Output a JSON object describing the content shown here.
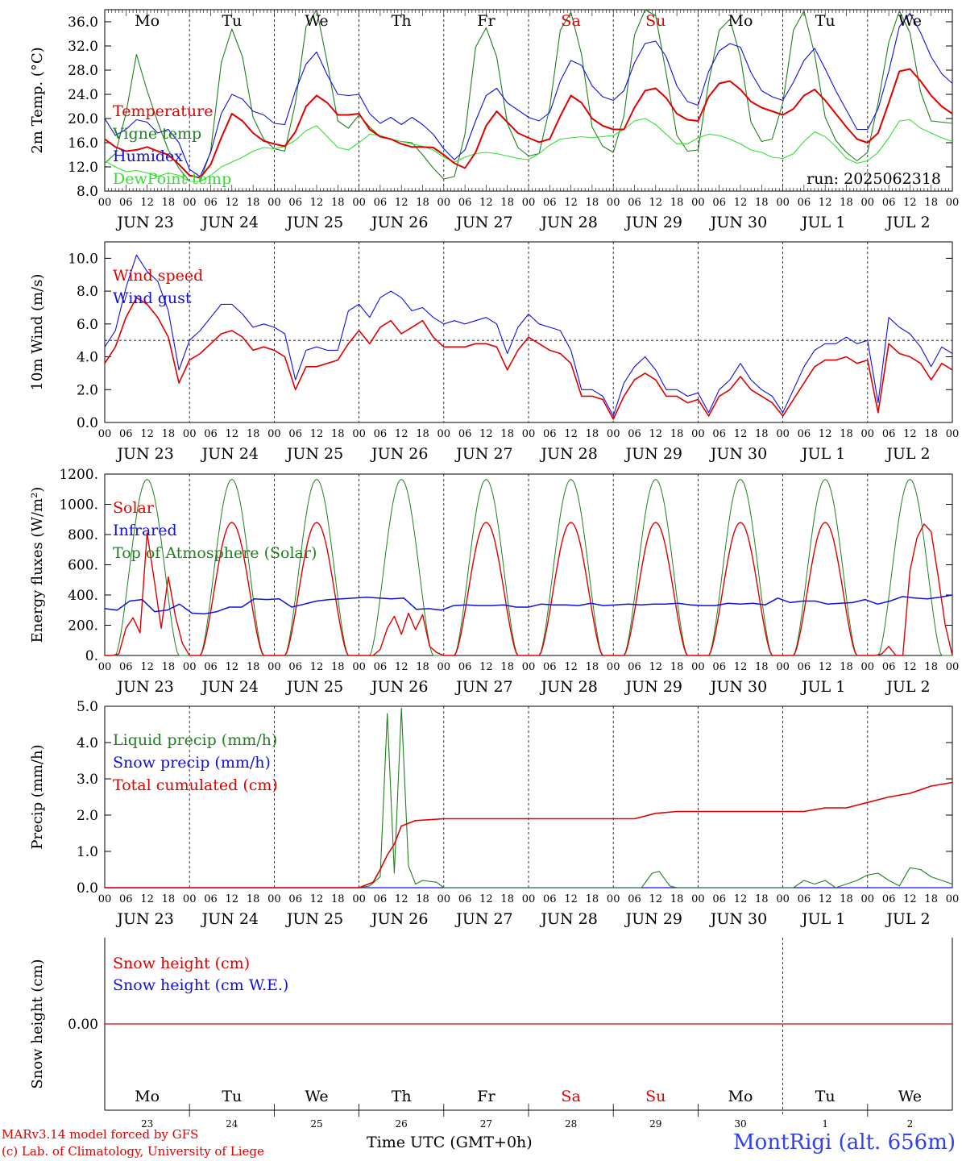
{
  "run_label": "run: 2025062318",
  "x_axis_title": "Time UTC (GMT+0h)",
  "credits": [
    "MARv3.14 model forced by GFS",
    "(c) Lab. of Climatology, University of Liege"
  ],
  "station": "MontRigi (alt. 656m)",
  "days": [
    "Mo",
    "Tu",
    "We",
    "Th",
    "Fr",
    "Sa",
    "Su",
    "Mo",
    "Tu",
    "We"
  ],
  "weekend_day_indices": [
    5,
    6
  ],
  "date_labels": [
    "JUN 23",
    "JUN 24",
    "JUN 25",
    "JUN 26",
    "JUN 27",
    "JUN 28",
    "JUN 29",
    "JUN 30",
    "JUL  1",
    "JUL  2"
  ],
  "day_numbers": [
    "23",
    "24",
    "25",
    "26",
    "27",
    "28",
    "29",
    "30",
    "1",
    "2"
  ],
  "hour_ticks": [
    "00",
    "06",
    "12",
    "18"
  ],
  "colors": {
    "red": "#e00000",
    "blue": "#1010e0",
    "green": "#208020",
    "lightgreen": "#30e030",
    "axis": "#000000"
  },
  "chart_data": [
    {
      "type": "line",
      "ylabel": "2m Temp. (°C)",
      "ylim": [
        8,
        38
      ],
      "yticks": [
        "8.0",
        "12.0",
        "16.0",
        "20.0",
        "24.0",
        "28.0",
        "32.0",
        "36.0"
      ],
      "ytick_values": [
        8,
        12,
        16,
        20,
        24,
        28,
        32,
        36
      ],
      "x_hours": [
        0,
        3,
        6,
        9,
        12,
        15,
        18,
        21,
        24,
        27,
        30,
        33,
        36,
        39,
        42,
        45,
        48,
        51,
        54,
        57,
        60,
        63,
        66,
        69,
        72,
        75,
        78,
        81,
        84,
        87,
        90,
        93,
        96,
        99,
        102,
        105,
        108,
        111,
        114,
        117,
        120,
        123,
        126,
        129,
        132,
        135,
        138,
        141,
        144,
        147,
        150,
        153,
        156,
        159,
        162,
        165,
        168,
        171,
        174,
        177,
        180,
        183,
        186,
        189,
        192,
        195,
        198,
        201,
        204,
        207,
        210,
        213,
        216,
        219,
        222,
        225,
        228,
        231,
        234,
        237,
        240
      ],
      "series": [
        {
          "name": "Temperature",
          "color": "red",
          "values": [
            16.6,
            15.3,
            14.6,
            14.8,
            15.3,
            14.6,
            14.0,
            12.4,
            10.6,
            10.2,
            12.4,
            16.8,
            20.8,
            19.6,
            17.6,
            16.3,
            15.8,
            15.4,
            17.8,
            22.0,
            23.8,
            22.6,
            20.6,
            20.6,
            20.8,
            18.2,
            17.0,
            16.6,
            15.8,
            15.3,
            15.3,
            15.2,
            14.0,
            12.6,
            11.8,
            14.4,
            18.8,
            21.2,
            19.4,
            17.6,
            16.8,
            16.1,
            16.6,
            20.4,
            23.8,
            22.6,
            20.0,
            18.8,
            18.2,
            18.2,
            21.8,
            24.6,
            25.0,
            23.4,
            20.8,
            19.8,
            19.6,
            23.6,
            25.8,
            26.2,
            24.8,
            22.8,
            21.8,
            21.2,
            20.6,
            21.6,
            23.8,
            24.8,
            23.0,
            20.8,
            18.6,
            16.6,
            16.0,
            17.6,
            22.6,
            27.8,
            28.2,
            26.2,
            23.8,
            22.0,
            20.8
          ]
        },
        {
          "name": "Vigne temp",
          "color": "green",
          "values": [
            12.6,
            14.2,
            20.8,
            30.6,
            24.6,
            19.4,
            14.8,
            11.8,
            9.6,
            9.6,
            14.6,
            29.2,
            34.8,
            30.2,
            20.2,
            16.6,
            15.0,
            14.6,
            22.6,
            35.2,
            38.0,
            29.2,
            19.6,
            18.4,
            20.6,
            18.6,
            17.0,
            16.6,
            16.2,
            16.0,
            14.0,
            11.8,
            10.0,
            10.4,
            17.4,
            31.8,
            35.0,
            30.2,
            19.2,
            15.2,
            13.8,
            14.2,
            21.8,
            34.6,
            37.6,
            30.6,
            18.6,
            15.4,
            14.4,
            20.4,
            33.8,
            38.2,
            37.0,
            27.4,
            17.2,
            14.6,
            14.8,
            26.0,
            34.6,
            36.4,
            30.2,
            19.4,
            16.2,
            16.6,
            22.6,
            34.6,
            37.8,
            30.6,
            20.2,
            16.4,
            14.4,
            13.0,
            14.4,
            22.6,
            32.6,
            37.8,
            34.2,
            24.4,
            19.6,
            19.4,
            19.2
          ]
        },
        {
          "name": "Humidex",
          "color": "blue",
          "values": [
            20.0,
            17.2,
            18.2,
            19.8,
            19.4,
            17.6,
            18.2,
            16.0,
            11.6,
            10.4,
            14.4,
            20.8,
            24.0,
            23.2,
            21.2,
            20.6,
            19.2,
            19.0,
            24.6,
            29.0,
            31.0,
            27.2,
            24.0,
            23.8,
            24.0,
            20.8,
            19.2,
            20.2,
            19.0,
            20.2,
            19.0,
            17.4,
            15.0,
            13.2,
            14.8,
            19.6,
            23.8,
            25.0,
            22.6,
            21.4,
            20.2,
            19.6,
            21.0,
            26.2,
            29.6,
            28.8,
            25.4,
            23.6,
            23.0,
            24.6,
            29.2,
            32.4,
            32.8,
            30.2,
            25.4,
            22.8,
            22.2,
            27.8,
            31.2,
            32.4,
            31.8,
            27.6,
            24.6,
            23.6,
            23.0,
            26.0,
            29.6,
            31.6,
            28.2,
            24.6,
            21.4,
            18.2,
            18.2,
            21.6,
            27.8,
            35.2,
            37.4,
            34.2,
            30.2,
            27.4,
            25.8
          ]
        },
        {
          "name": "DewPoint temp",
          "color": "lightgreen",
          "values": [
            13.0,
            12.0,
            11.2,
            11.4,
            11.0,
            10.4,
            11.0,
            10.6,
            9.6,
            9.6,
            10.6,
            12.0,
            12.8,
            13.6,
            14.6,
            15.2,
            15.0,
            15.4,
            16.4,
            18.0,
            18.8,
            17.0,
            15.2,
            14.8,
            16.0,
            17.4,
            17.2,
            16.6,
            16.2,
            15.8,
            15.4,
            14.8,
            13.6,
            12.8,
            13.6,
            14.2,
            14.4,
            14.2,
            13.8,
            13.4,
            13.2,
            14.2,
            15.6,
            16.6,
            16.8,
            17.0,
            16.8,
            17.0,
            17.2,
            18.2,
            19.6,
            20.0,
            19.0,
            17.4,
            15.8,
            15.8,
            16.8,
            17.4,
            17.2,
            16.6,
            15.8,
            14.8,
            14.4,
            13.6,
            13.4,
            14.2,
            16.2,
            17.8,
            17.0,
            15.4,
            13.4,
            12.6,
            13.0,
            14.4,
            16.8,
            19.6,
            19.8,
            18.4,
            17.6,
            16.8,
            16.2
          ]
        }
      ],
      "legend": [
        "Temperature",
        "Vigne temp",
        "Humidex",
        "DewPoint temp"
      ],
      "legend_colors": [
        "red",
        "green",
        "blue",
        "lightgreen"
      ],
      "show_days": true,
      "show_run": true
    },
    {
      "type": "line",
      "ylabel": "10m Wind (m/s)",
      "ylim": [
        0,
        11
      ],
      "yticks": [
        "0.0",
        "2.0",
        "4.0",
        "6.0",
        "8.0",
        "10.0"
      ],
      "ytick_values": [
        0,
        2,
        4,
        6,
        8,
        10
      ],
      "ref_line": 5,
      "x_hours": [
        0,
        3,
        6,
        9,
        12,
        15,
        18,
        21,
        24,
        27,
        30,
        33,
        36,
        39,
        42,
        45,
        48,
        51,
        54,
        57,
        60,
        63,
        66,
        69,
        72,
        75,
        78,
        81,
        84,
        87,
        90,
        93,
        96,
        99,
        102,
        105,
        108,
        111,
        114,
        117,
        120,
        123,
        126,
        129,
        132,
        135,
        138,
        141,
        144,
        147,
        150,
        153,
        156,
        159,
        162,
        165,
        168,
        171,
        174,
        177,
        180,
        183,
        186,
        189,
        192,
        195,
        198,
        201,
        204,
        207,
        210,
        213,
        216,
        219,
        222,
        225,
        228,
        231,
        234,
        237,
        240
      ],
      "series": [
        {
          "name": "Wind speed",
          "color": "red",
          "values": [
            3.6,
            4.6,
            6.4,
            7.6,
            7.2,
            6.4,
            5.2,
            2.4,
            3.8,
            4.2,
            4.8,
            5.4,
            5.6,
            5.2,
            4.4,
            4.6,
            4.4,
            4.0,
            2.0,
            3.4,
            3.4,
            3.6,
            3.8,
            4.8,
            5.6,
            4.8,
            5.8,
            6.2,
            5.4,
            5.8,
            6.2,
            5.2,
            4.6,
            4.6,
            4.6,
            4.8,
            4.8,
            4.6,
            3.2,
            4.4,
            5.2,
            4.8,
            4.4,
            4.2,
            3.6,
            1.6,
            1.6,
            1.4,
            0.2,
            1.6,
            2.6,
            3.0,
            2.6,
            1.6,
            1.6,
            1.2,
            1.4,
            0.4,
            1.6,
            2.0,
            2.8,
            2.0,
            1.6,
            1.2,
            0.4,
            1.4,
            2.4,
            3.4,
            3.8,
            3.8,
            4.0,
            3.6,
            3.8,
            0.6,
            4.8,
            4.2,
            4.0,
            3.6,
            2.6,
            3.6,
            3.2
          ]
        },
        {
          "name": "Wind gust",
          "color": "blue",
          "values": [
            4.6,
            5.6,
            8.2,
            10.2,
            9.2,
            8.6,
            6.8,
            3.2,
            5.0,
            5.6,
            6.4,
            7.2,
            7.2,
            6.6,
            5.8,
            6.0,
            5.8,
            5.4,
            2.6,
            4.4,
            4.6,
            4.4,
            4.4,
            6.8,
            7.2,
            6.4,
            7.6,
            8.0,
            7.6,
            6.8,
            7.0,
            6.4,
            6.0,
            6.2,
            6.0,
            6.2,
            6.4,
            6.0,
            4.2,
            5.8,
            6.6,
            6.0,
            5.8,
            5.6,
            4.4,
            2.0,
            2.0,
            1.6,
            0.4,
            2.4,
            3.4,
            4.0,
            3.2,
            2.0,
            2.0,
            1.6,
            1.8,
            0.6,
            2.0,
            2.6,
            3.6,
            2.6,
            2.0,
            1.6,
            0.6,
            2.0,
            3.4,
            4.4,
            4.8,
            4.8,
            5.2,
            4.8,
            5.0,
            1.2,
            6.4,
            5.8,
            5.4,
            4.6,
            3.4,
            4.6,
            4.2
          ]
        }
      ],
      "legend": [
        "Wind speed",
        "Wind gust"
      ],
      "legend_colors": [
        "red",
        "blue"
      ]
    },
    {
      "type": "line",
      "ylabel": "Energy fluxes (W/m²)",
      "ylim": [
        0,
        1200
      ],
      "yticks": [
        "0.",
        "200.",
        "400.",
        "600.",
        "800.",
        "1000.",
        "1200."
      ],
      "ytick_values": [
        0,
        200,
        400,
        600,
        800,
        1000,
        1200
      ],
      "solar_peak": 880,
      "toa_peak": 1165,
      "daylight_hours": [
        3,
        21
      ],
      "cloudy_days": {
        "day_0": [
          0,
          0,
          10,
          180,
          250,
          150,
          810,
          500,
          180,
          520,
          260,
          80,
          0
        ],
        "day_3": [
          0,
          0,
          0,
          40,
          180,
          260,
          140,
          280,
          170,
          270,
          60,
          20,
          0
        ],
        "day_9": [
          0,
          0,
          10,
          60,
          0,
          0,
          560,
          780,
          870,
          820,
          520,
          200,
          0
        ]
      },
      "infrared_values": [
        310,
        300,
        360,
        370,
        290,
        300,
        340,
        280,
        275,
        290,
        320,
        320,
        375,
        370,
        375,
        320,
        340,
        360,
        370,
        375,
        380,
        385,
        380,
        375,
        380,
        305,
        310,
        300,
        330,
        335,
        330,
        330,
        335,
        320,
        320,
        340,
        335,
        335,
        330,
        345,
        330,
        335,
        340,
        335,
        340,
        340,
        345,
        335,
        330,
        330,
        345,
        340,
        345,
        335,
        380,
        350,
        360,
        360,
        340,
        345,
        350,
        370,
        340,
        360,
        390,
        380,
        375,
        385,
        400
      ],
      "legend": [
        "Solar",
        "Infrared",
        "Top of Atmosphere (Solar)"
      ],
      "legend_colors": [
        "red",
        "blue",
        "green"
      ]
    },
    {
      "type": "line",
      "ylabel": "Precip (mm/h)",
      "ylim": [
        0,
        5
      ],
      "yticks": [
        "0.0",
        "1.0",
        "2.0",
        "3.0",
        "4.0",
        "5.0"
      ],
      "ytick_values": [
        0,
        1,
        2,
        3,
        4,
        5
      ],
      "liquid_points": [
        [
          0,
          0
        ],
        [
          72,
          0
        ],
        [
          75,
          0.05
        ],
        [
          78,
          0.3
        ],
        [
          80,
          4.8
        ],
        [
          82,
          0.4
        ],
        [
          84,
          4.95
        ],
        [
          86,
          0.6
        ],
        [
          88,
          0.1
        ],
        [
          90,
          0.2
        ],
        [
          94,
          0.15
        ],
        [
          96,
          0
        ],
        [
          152,
          0
        ],
        [
          155,
          0.4
        ],
        [
          157,
          0.45
        ],
        [
          160,
          0.05
        ],
        [
          162,
          0
        ],
        [
          195,
          0
        ],
        [
          198,
          0.2
        ],
        [
          201,
          0.1
        ],
        [
          204,
          0.2
        ],
        [
          207,
          0
        ],
        [
          213,
          0.2
        ],
        [
          216,
          0.35
        ],
        [
          219,
          0.4
        ],
        [
          222,
          0.2
        ],
        [
          225,
          0.05
        ],
        [
          228,
          0.55
        ],
        [
          231,
          0.5
        ],
        [
          234,
          0.3
        ],
        [
          237,
          0.2
        ],
        [
          240,
          0.1
        ]
      ],
      "total_points": [
        [
          0,
          0
        ],
        [
          72,
          0
        ],
        [
          76,
          0.15
        ],
        [
          78,
          0.5
        ],
        [
          80,
          0.9
        ],
        [
          82,
          1.2
        ],
        [
          84,
          1.7
        ],
        [
          88,
          1.85
        ],
        [
          96,
          1.9
        ],
        [
          150,
          1.9
        ],
        [
          156,
          2.05
        ],
        [
          162,
          2.1
        ],
        [
          198,
          2.1
        ],
        [
          204,
          2.2
        ],
        [
          210,
          2.2
        ],
        [
          216,
          2.35
        ],
        [
          222,
          2.5
        ],
        [
          228,
          2.6
        ],
        [
          234,
          2.8
        ],
        [
          240,
          2.9
        ]
      ],
      "legend": [
        "Liquid precip (mm/h)",
        "Snow precip (mm/h)",
        "Total cumulated (cm)"
      ],
      "legend_colors": [
        "green",
        "blue",
        "red"
      ]
    },
    {
      "type": "line",
      "ylabel": "Snow height (cm)",
      "ytick_label": "0.00",
      "values": [
        0.0,
        0.0
      ],
      "legend": [
        "Snow height (cm)",
        "Snow height (cm W.E.)"
      ],
      "legend_colors": [
        "red",
        "blue"
      ]
    }
  ]
}
